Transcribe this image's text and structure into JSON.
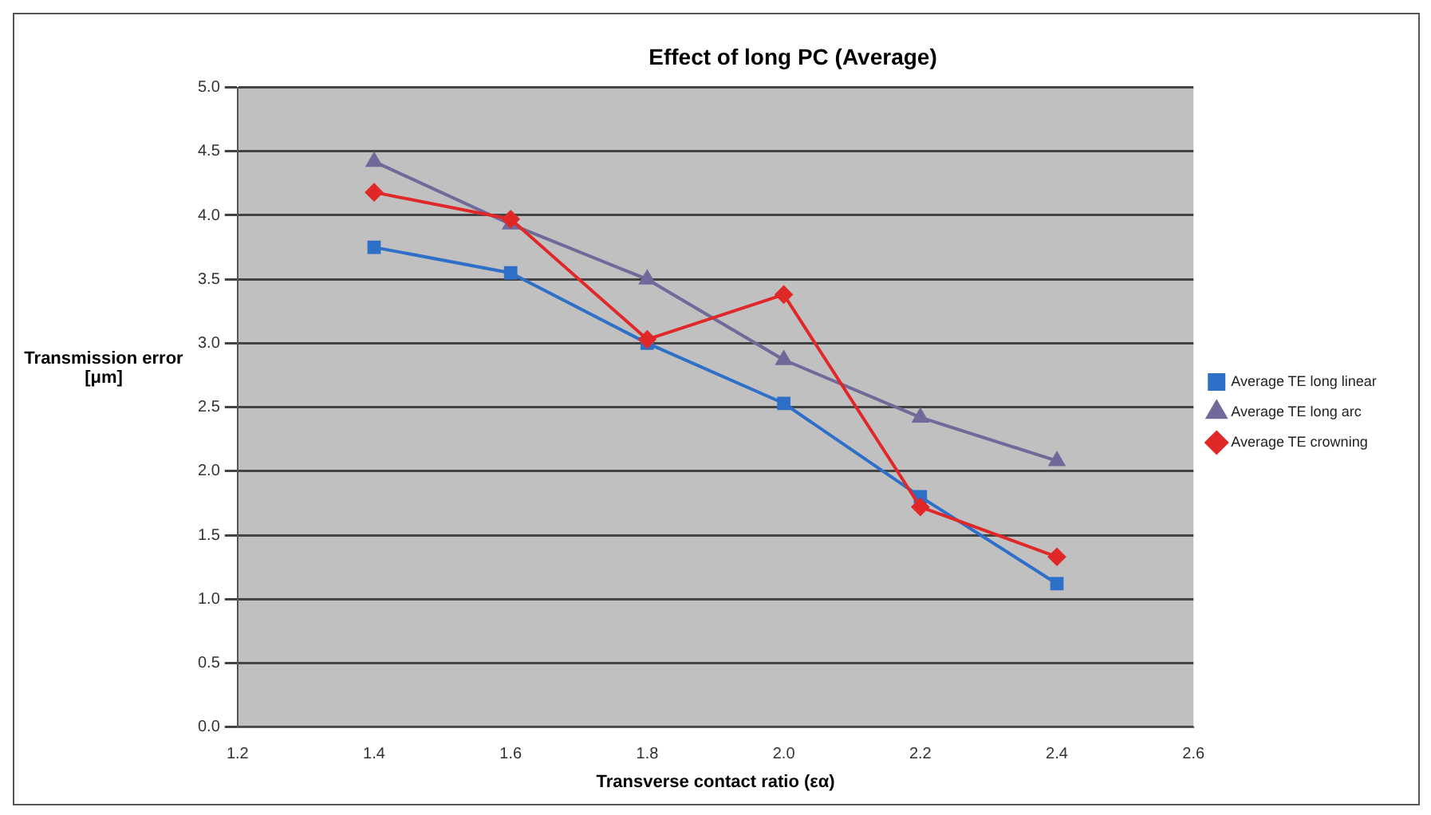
{
  "chart_data": {
    "type": "line",
    "title": "Effect of long PC (Average)",
    "xlabel": "Transverse contact ratio (εα)",
    "ylabel": "Transmission error [μm]",
    "x": [
      1.4,
      1.6,
      1.8,
      2.0,
      2.2,
      2.4
    ],
    "series": [
      {
        "name": "Average TE long linear",
        "color": "#2e6fc7",
        "marker": "square",
        "values": [
          3.75,
          3.55,
          3.0,
          2.53,
          1.8,
          1.12
        ]
      },
      {
        "name": "Average TE long arc",
        "color": "#6f6a9a",
        "marker": "triangle",
        "values": [
          4.42,
          3.93,
          3.5,
          2.87,
          2.42,
          2.08
        ]
      },
      {
        "name": "Average TE crowning",
        "color": "#e02828",
        "marker": "diamond",
        "values": [
          4.18,
          3.97,
          3.03,
          3.38,
          1.72,
          1.33
        ]
      }
    ],
    "xlim": [
      1.2,
      2.6
    ],
    "xticks": [
      {
        "value": 1.2,
        "label": "1.2"
      },
      {
        "value": 1.4,
        "label": "1.4"
      },
      {
        "value": 1.6,
        "label": "1.6"
      },
      {
        "value": 1.8,
        "label": "1.8"
      },
      {
        "value": 2.0,
        "label": "2.0"
      },
      {
        "value": 2.2,
        "label": "2.2"
      },
      {
        "value": 2.4,
        "label": "2.4"
      },
      {
        "value": 2.6,
        "label": "2.6"
      }
    ],
    "ylim": [
      0,
      5
    ],
    "yticks": [
      {
        "value": 0,
        "label": "0.0"
      },
      {
        "value": 0.5,
        "label": "0.5"
      },
      {
        "value": 1,
        "label": "1.0"
      },
      {
        "value": 1.5,
        "label": "1.5"
      },
      {
        "value": 2,
        "label": "2.0"
      },
      {
        "value": 2.5,
        "label": "2.5"
      },
      {
        "value": 3,
        "label": "3.0"
      },
      {
        "value": 3.5,
        "label": "3.5"
      },
      {
        "value": 4,
        "label": "4.0"
      },
      {
        "value": 4.5,
        "label": "4.5"
      },
      {
        "value": 5,
        "label": "5.0"
      }
    ],
    "grid": "y",
    "legend": "right",
    "line_style": "solid"
  }
}
